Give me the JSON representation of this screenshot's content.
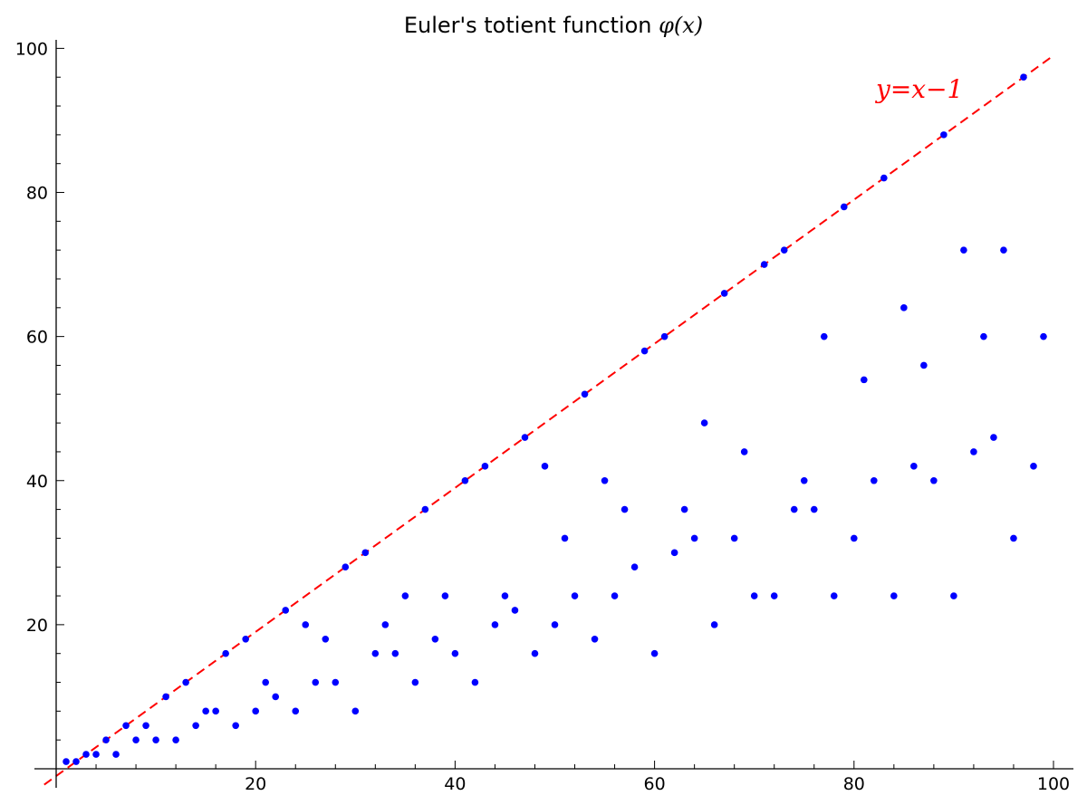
{
  "chart_data": {
    "type": "scatter",
    "title": "Euler's totient function ",
    "title_math": "φ(x)",
    "xlabel": "",
    "ylabel": "",
    "xlim": [
      0,
      102
    ],
    "ylim": [
      0,
      101
    ],
    "x_ticks": [
      20,
      40,
      60,
      80,
      100
    ],
    "y_ticks": [
      20,
      40,
      60,
      80,
      100
    ],
    "x_tick_labels": [
      "20",
      "40",
      "60",
      "80",
      "100"
    ],
    "y_tick_labels": [
      "20",
      "40",
      "60",
      "80",
      "100"
    ],
    "grid": false,
    "point_color": "#0000ff",
    "reference_line": {
      "label": "y=x−1",
      "color": "#ff0000",
      "style": "dashed",
      "x_range": [
        0,
        100
      ]
    },
    "x": [
      1,
      2,
      3,
      4,
      5,
      6,
      7,
      8,
      9,
      10,
      11,
      12,
      13,
      14,
      15,
      16,
      17,
      18,
      19,
      20,
      21,
      22,
      23,
      24,
      25,
      26,
      27,
      28,
      29,
      30,
      31,
      32,
      33,
      34,
      35,
      36,
      37,
      38,
      39,
      40,
      41,
      42,
      43,
      44,
      45,
      46,
      47,
      48,
      49,
      50,
      51,
      52,
      53,
      54,
      55,
      56,
      57,
      58,
      59,
      60,
      61,
      62,
      63,
      64,
      65,
      66,
      67,
      68,
      69,
      70,
      71,
      72,
      73,
      74,
      75,
      76,
      77,
      78,
      79,
      80,
      81,
      82,
      83,
      84,
      85,
      86,
      87,
      88,
      89,
      90,
      91,
      92,
      93,
      94,
      95,
      96,
      97,
      98,
      99
    ],
    "y": [
      1,
      1,
      2,
      2,
      4,
      2,
      6,
      4,
      6,
      4,
      10,
      4,
      12,
      6,
      8,
      8,
      16,
      6,
      18,
      8,
      12,
      10,
      22,
      8,
      20,
      12,
      18,
      12,
      28,
      8,
      30,
      16,
      20,
      16,
      24,
      12,
      36,
      18,
      24,
      16,
      40,
      12,
      42,
      20,
      24,
      22,
      46,
      16,
      42,
      20,
      32,
      24,
      52,
      18,
      40,
      24,
      36,
      28,
      58,
      16,
      60,
      30,
      36,
      32,
      48,
      20,
      66,
      32,
      44,
      24,
      70,
      24,
      72,
      36,
      40,
      36,
      60,
      24,
      78,
      32,
      54,
      40,
      82,
      24,
      64,
      42,
      56,
      40,
      88,
      24,
      72,
      44,
      60,
      46,
      72,
      32,
      96,
      42,
      60
    ]
  }
}
